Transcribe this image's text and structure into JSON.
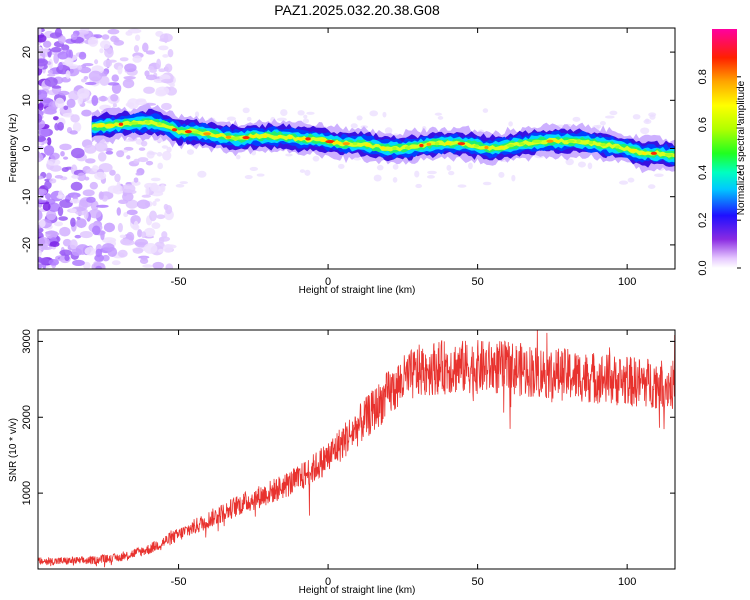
{
  "figure_title": "PAZ1.2025.032.20.38.G08",
  "chart_data": [
    {
      "type": "heatmap",
      "title": "",
      "xlabel": "Height of straight line (km)",
      "ylabel": "Frequency (Hz)",
      "xlim": [
        -97,
        116
      ],
      "ylim": [
        -25,
        25
      ],
      "xticks": [
        -50,
        0,
        50,
        100
      ],
      "yticks": [
        -20,
        -10,
        0,
        10,
        20
      ],
      "colorbar": {
        "label": "Normalized spectral amplitude",
        "range": [
          0.0,
          1.0
        ],
        "ticks": [
          "0.0",
          "0.2",
          "0.4",
          "0.6",
          "0.8"
        ],
        "colormap": "rainbow (white-violet-blue-cyan-green-yellow-orange-red-magenta)"
      },
      "ridge": {
        "x_start": -79,
        "x_end": 116,
        "frequency_points": [
          [
            -79,
            4.5
          ],
          [
            -70,
            5
          ],
          [
            -60,
            5.5
          ],
          [
            -55,
            5
          ],
          [
            -50,
            3.5
          ],
          [
            -45,
            3.5
          ],
          [
            -40,
            3
          ],
          [
            -35,
            2.5
          ],
          [
            -30,
            2
          ],
          [
            -25,
            2.5
          ],
          [
            -20,
            2.5
          ],
          [
            -15,
            2.5
          ],
          [
            -10,
            2
          ],
          [
            -5,
            2
          ],
          [
            0,
            1.5
          ],
          [
            5,
            1
          ],
          [
            10,
            1
          ],
          [
            15,
            0.5
          ],
          [
            20,
            0
          ],
          [
            25,
            0
          ],
          [
            30,
            0.5
          ],
          [
            35,
            1
          ],
          [
            40,
            1
          ],
          [
            45,
            1
          ],
          [
            50,
            0.5
          ],
          [
            55,
            0
          ],
          [
            60,
            0.5
          ],
          [
            65,
            1
          ],
          [
            70,
            1.5
          ],
          [
            75,
            1.5
          ],
          [
            80,
            1.5
          ],
          [
            85,
            1.5
          ],
          [
            90,
            1
          ],
          [
            95,
            0.5
          ],
          [
            100,
            0
          ],
          [
            105,
            -1
          ],
          [
            110,
            -1
          ],
          [
            116,
            -1.5
          ]
        ]
      },
      "noise_region": {
        "x_from": -97,
        "x_to": -58,
        "note": "scattered low-amplitude violet noise"
      }
    },
    {
      "type": "line",
      "title": "",
      "xlabel": "Height of straight line (km)",
      "ylabel": "SNR (10 * v/v)",
      "xlim": [
        -97,
        116
      ],
      "ylim": [
        0,
        3150
      ],
      "xticks": [
        -50,
        0,
        50,
        100
      ],
      "yticks": [
        1000,
        2000,
        3000
      ],
      "color": "#e8322e",
      "envelope": [
        [
          -97,
          100
        ],
        [
          -80,
          110
        ],
        [
          -70,
          150
        ],
        [
          -60,
          260
        ],
        [
          -50,
          450
        ],
        [
          -40,
          650
        ],
        [
          -30,
          840
        ],
        [
          -20,
          1000
        ],
        [
          -10,
          1180
        ],
        [
          -5,
          1320
        ],
        [
          0,
          1480
        ],
        [
          5,
          1680
        ],
        [
          10,
          1880
        ],
        [
          15,
          2080
        ],
        [
          20,
          2300
        ],
        [
          25,
          2480
        ],
        [
          30,
          2600
        ],
        [
          35,
          2650
        ],
        [
          40,
          2660
        ],
        [
          50,
          2660
        ],
        [
          60,
          2650
        ],
        [
          70,
          2600
        ],
        [
          80,
          2560
        ],
        [
          90,
          2520
        ],
        [
          100,
          2470
        ],
        [
          110,
          2450
        ],
        [
          116,
          2420
        ]
      ]
    }
  ]
}
